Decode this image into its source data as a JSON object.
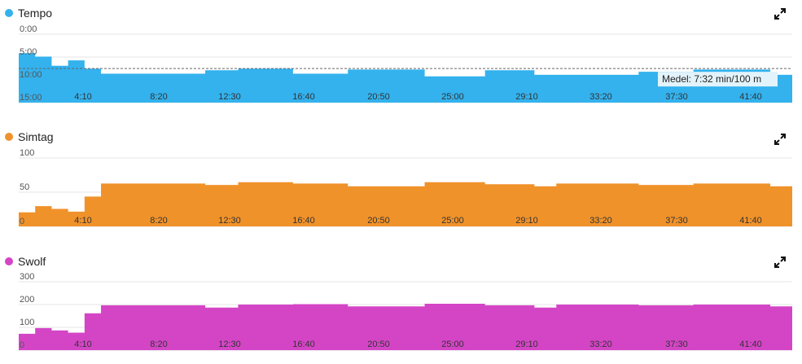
{
  "x_tick_labels": [
    "4:10",
    "8:20",
    "12:30",
    "16:40",
    "20:50",
    "25:00",
    "29:10",
    "33:20",
    "37:30",
    "41:40"
  ],
  "chart_data": [
    {
      "type": "area",
      "title": "Tempo",
      "color": "#33b2ee",
      "y_ticks": [
        "0:00",
        "5:00",
        "10:00",
        "15:00"
      ],
      "ylim_seconds": [
        0,
        900
      ],
      "y_inverted": true,
      "average_label": "Medel: 7:32 min/100 m",
      "average_seconds": 452,
      "xlim_seconds": [
        0,
        2820
      ],
      "x_seconds": [
        0,
        60,
        120,
        180,
        240,
        300,
        680,
        800,
        1000,
        1200,
        1480,
        1700,
        1880,
        1960,
        2260,
        2460,
        2740,
        2820
      ],
      "values_seconds": [
        255,
        300,
        420,
        350,
        460,
        525,
        480,
        460,
        525,
        470,
        560,
        480,
        540,
        540,
        500,
        470,
        540,
        540
      ]
    },
    {
      "type": "area",
      "title": "Simtag",
      "color": "#f0922a",
      "y_ticks": [
        "100",
        "50",
        "0"
      ],
      "ylim": [
        0,
        100
      ],
      "y_inverted": false,
      "xlim_seconds": [
        0,
        2820
      ],
      "x_seconds": [
        0,
        60,
        120,
        180,
        240,
        300,
        680,
        800,
        1000,
        1200,
        1480,
        1700,
        1880,
        1960,
        2260,
        2460,
        2740,
        2820
      ],
      "values": [
        20,
        29,
        25,
        21,
        43,
        62,
        60,
        64,
        62,
        58,
        64,
        61,
        58,
        62,
        60,
        62,
        58,
        62
      ]
    },
    {
      "type": "area",
      "title": "Swolf",
      "color": "#d445c6",
      "y_ticks": [
        "300",
        "200",
        "100",
        "0"
      ],
      "ylim": [
        0,
        300
      ],
      "y_inverted": false,
      "xlim_seconds": [
        0,
        2820
      ],
      "x_seconds": [
        0,
        60,
        120,
        180,
        240,
        300,
        680,
        800,
        1000,
        1200,
        1480,
        1700,
        1880,
        1960,
        2260,
        2460,
        2740,
        2820
      ],
      "values": [
        70,
        95,
        85,
        75,
        160,
        195,
        185,
        198,
        200,
        190,
        202,
        195,
        185,
        198,
        195,
        198,
        190,
        200
      ]
    }
  ]
}
